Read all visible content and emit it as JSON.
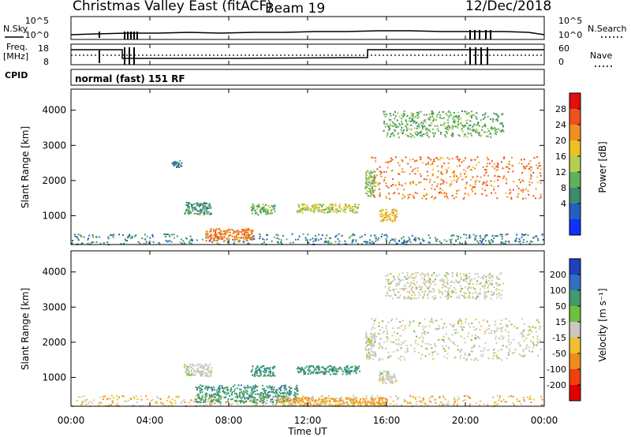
{
  "header": {
    "station": "Christmas Valley East (fitACF)",
    "beam": "Beam 19",
    "date": "12/Dec/2018"
  },
  "summary_panels": {
    "nsky": {
      "label": "N.Sky",
      "left_ticks": [
        "10^5",
        "10^0"
      ],
      "right_ticks": [
        "10^5",
        "10^0"
      ],
      "right_label": "N.Search"
    },
    "freq": {
      "label_line1": "Freq.",
      "label_line2": "[MHz]",
      "left_ticks": [
        "18",
        "8"
      ],
      "right_ticks": [
        "60",
        "0"
      ],
      "right_label": "Nave"
    },
    "cpid": {
      "label": "CPID",
      "mode_text": "normal (fast) 151 RF"
    }
  },
  "time_axis": {
    "label": "Time UT",
    "ticks": [
      "00:00",
      "04:00",
      "08:00",
      "12:00",
      "16:00",
      "20:00",
      "00:00"
    ]
  },
  "range_ticks": [
    "1000",
    "2000",
    "3000",
    "4000"
  ],
  "colorbars": {
    "power": {
      "label": "Power [dB]",
      "ticks": [
        "4",
        "8",
        "12",
        "16",
        "20",
        "24",
        "28"
      ],
      "colors": [
        "#1030ff",
        "#2060c0",
        "#3c8c6c",
        "#63b05a",
        "#b2d050",
        "#f0c020",
        "#f09020",
        "#f05020",
        "#e01010"
      ]
    },
    "velocity": {
      "label": "Velocity [m s⁻¹]",
      "ticks": [
        "200",
        "100",
        "50",
        "15",
        "-15",
        "-50",
        "-100",
        "-200"
      ],
      "colors": [
        "#2040c0",
        "#3070c0",
        "#3f9c6a",
        "#70c040",
        "#c8c8c0",
        "#f0c030",
        "#f08c1c",
        "#f04010",
        "#e00000"
      ]
    }
  },
  "chart_data": [
    {
      "type": "heatmap",
      "title": "Power",
      "xlabel": "Time UT",
      "ylabel": "Slant Range [km]",
      "xlim": [
        "00:00",
        "24:00"
      ],
      "ylim": [
        180,
        4600
      ],
      "colorbar_label": "Power [dB]",
      "colorbar_ticks": [
        4,
        8,
        12,
        16,
        20,
        24,
        28
      ],
      "regions": [
        {
          "t0": 0.0,
          "t1": 24.0,
          "r0": 200,
          "r1": 500,
          "value": 8
        },
        {
          "t0": 6.8,
          "t1": 9.2,
          "r0": 300,
          "r1": 650,
          "value": 24
        },
        {
          "t0": 5.7,
          "t1": 7.1,
          "r0": 1050,
          "r1": 1400,
          "value": 10
        },
        {
          "t0": 9.1,
          "t1": 10.3,
          "r0": 1050,
          "r1": 1350,
          "value": 12
        },
        {
          "t0": 11.4,
          "t1": 14.6,
          "r0": 1100,
          "r1": 1350,
          "value": 16
        },
        {
          "t0": 14.9,
          "t1": 15.4,
          "r0": 1550,
          "r1": 2300,
          "value": 14
        },
        {
          "t0": 15.6,
          "t1": 16.5,
          "r0": 850,
          "r1": 1200,
          "value": 20
        },
        {
          "t0": 15.2,
          "t1": 23.8,
          "r0": 1500,
          "r1": 2700,
          "value": 24
        },
        {
          "t0": 15.8,
          "t1": 21.9,
          "r0": 3250,
          "r1": 4000,
          "value": 12
        },
        {
          "t0": 5.1,
          "t1": 5.6,
          "r0": 2400,
          "r1": 2600,
          "value": 8
        }
      ]
    },
    {
      "type": "heatmap",
      "title": "Velocity",
      "xlabel": "Time UT",
      "ylabel": "Slant Range [km]",
      "xlim": [
        "00:00",
        "24:00"
      ],
      "ylim": [
        180,
        4600
      ],
      "colorbar_label": "Velocity [m s⁻¹]",
      "colorbar_ticks": [
        200,
        100,
        50,
        15,
        -15,
        -50,
        -100,
        -200
      ],
      "regions": [
        {
          "t0": 0.0,
          "t1": 24.0,
          "r0": 200,
          "r1": 500,
          "value": -20
        },
        {
          "t0": 6.3,
          "t1": 11.5,
          "r0": 300,
          "r1": 800,
          "value": 60
        },
        {
          "t0": 10.5,
          "t1": 16.0,
          "r0": 200,
          "r1": 450,
          "value": -30
        },
        {
          "t0": 5.7,
          "t1": 7.1,
          "r0": 1050,
          "r1": 1400,
          "value": 0
        },
        {
          "t0": 9.1,
          "t1": 10.3,
          "r0": 1050,
          "r1": 1350,
          "value": 60
        },
        {
          "t0": 11.4,
          "t1": 14.6,
          "r0": 1100,
          "r1": 1350,
          "value": 60
        },
        {
          "t0": 14.9,
          "t1": 15.4,
          "r0": 1550,
          "r1": 2300,
          "value": 0
        },
        {
          "t0": 15.6,
          "t1": 16.5,
          "r0": 850,
          "r1": 1200,
          "value": 0
        },
        {
          "t0": 15.2,
          "t1": 23.8,
          "r0": 1500,
          "r1": 2700,
          "value": 0
        },
        {
          "t0": 15.8,
          "t1": 21.9,
          "r0": 3250,
          "r1": 4000,
          "value": 0
        }
      ]
    }
  ]
}
